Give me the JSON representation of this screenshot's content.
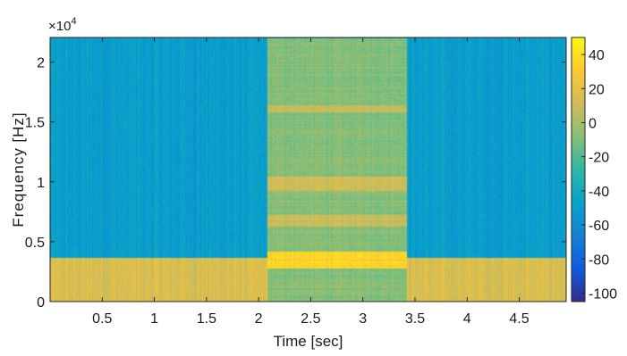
{
  "chart_data": {
    "type": "heatmap",
    "title": "",
    "xlabel": "Time [sec]",
    "ylabel": "Frequency [Hz]",
    "y_exponent_label": "×10",
    "y_exponent_power": "4",
    "xlim": [
      0,
      4.95
    ],
    "ylim": [
      0,
      22050
    ],
    "x_ticks": [
      0.5,
      1,
      1.5,
      2,
      2.5,
      3,
      3.5,
      4,
      4.5
    ],
    "x_tick_labels": [
      "0.5",
      "1",
      "1.5",
      "2",
      "2.5",
      "3",
      "3.5",
      "4",
      "4.5"
    ],
    "y_ticks": [
      0,
      5000,
      10000,
      15000,
      20000
    ],
    "y_tick_labels": [
      "0",
      "0.5",
      "1",
      "1.5",
      "2"
    ],
    "colorbar": {
      "label": "",
      "lim": [
        -105,
        50
      ],
      "ticks": [
        40,
        20,
        0,
        -20,
        -40,
        -60,
        -80,
        -100
      ],
      "tick_labels": [
        "40",
        "20",
        "0",
        "-20",
        "-40",
        "-60",
        "-80",
        "-100"
      ],
      "colormap": "parula",
      "colors": [
        "#352a87",
        "#0f5cdd",
        "#1481d6",
        "#06a4ca",
        "#2eb7a4",
        "#87bf77",
        "#d1bb59",
        "#fec832",
        "#f9fb0e"
      ]
    },
    "regions": [
      {
        "t_start": 0,
        "t_end": 2.08,
        "f_low": 0,
        "f_high": 3700,
        "level_db": 15
      },
      {
        "t_start": 0,
        "t_end": 2.08,
        "f_low": 3700,
        "f_high": 22050,
        "level_db": -50
      },
      {
        "t_start": 2.08,
        "t_end": 3.42,
        "f_low": 0,
        "f_high": 22050,
        "level_db": -8
      },
      {
        "t_start": 3.42,
        "t_end": 4.95,
        "f_low": 0,
        "f_high": 3700,
        "level_db": 15
      },
      {
        "t_start": 3.42,
        "t_end": 4.95,
        "f_low": 3700,
        "f_high": 22050,
        "level_db": -50
      }
    ],
    "bands": [
      {
        "t_start": 2.08,
        "t_end": 3.42,
        "f_low": 2800,
        "f_high": 4200,
        "level_db": 35
      },
      {
        "t_start": 2.08,
        "t_end": 3.42,
        "f_low": 9300,
        "f_high": 10500,
        "level_db": 12
      },
      {
        "t_start": 2.08,
        "t_end": 3.42,
        "f_low": 6300,
        "f_high": 7300,
        "level_db": 10
      },
      {
        "t_start": 2.08,
        "t_end": 3.42,
        "f_low": 15800,
        "f_high": 16400,
        "level_db": 8
      }
    ]
  }
}
